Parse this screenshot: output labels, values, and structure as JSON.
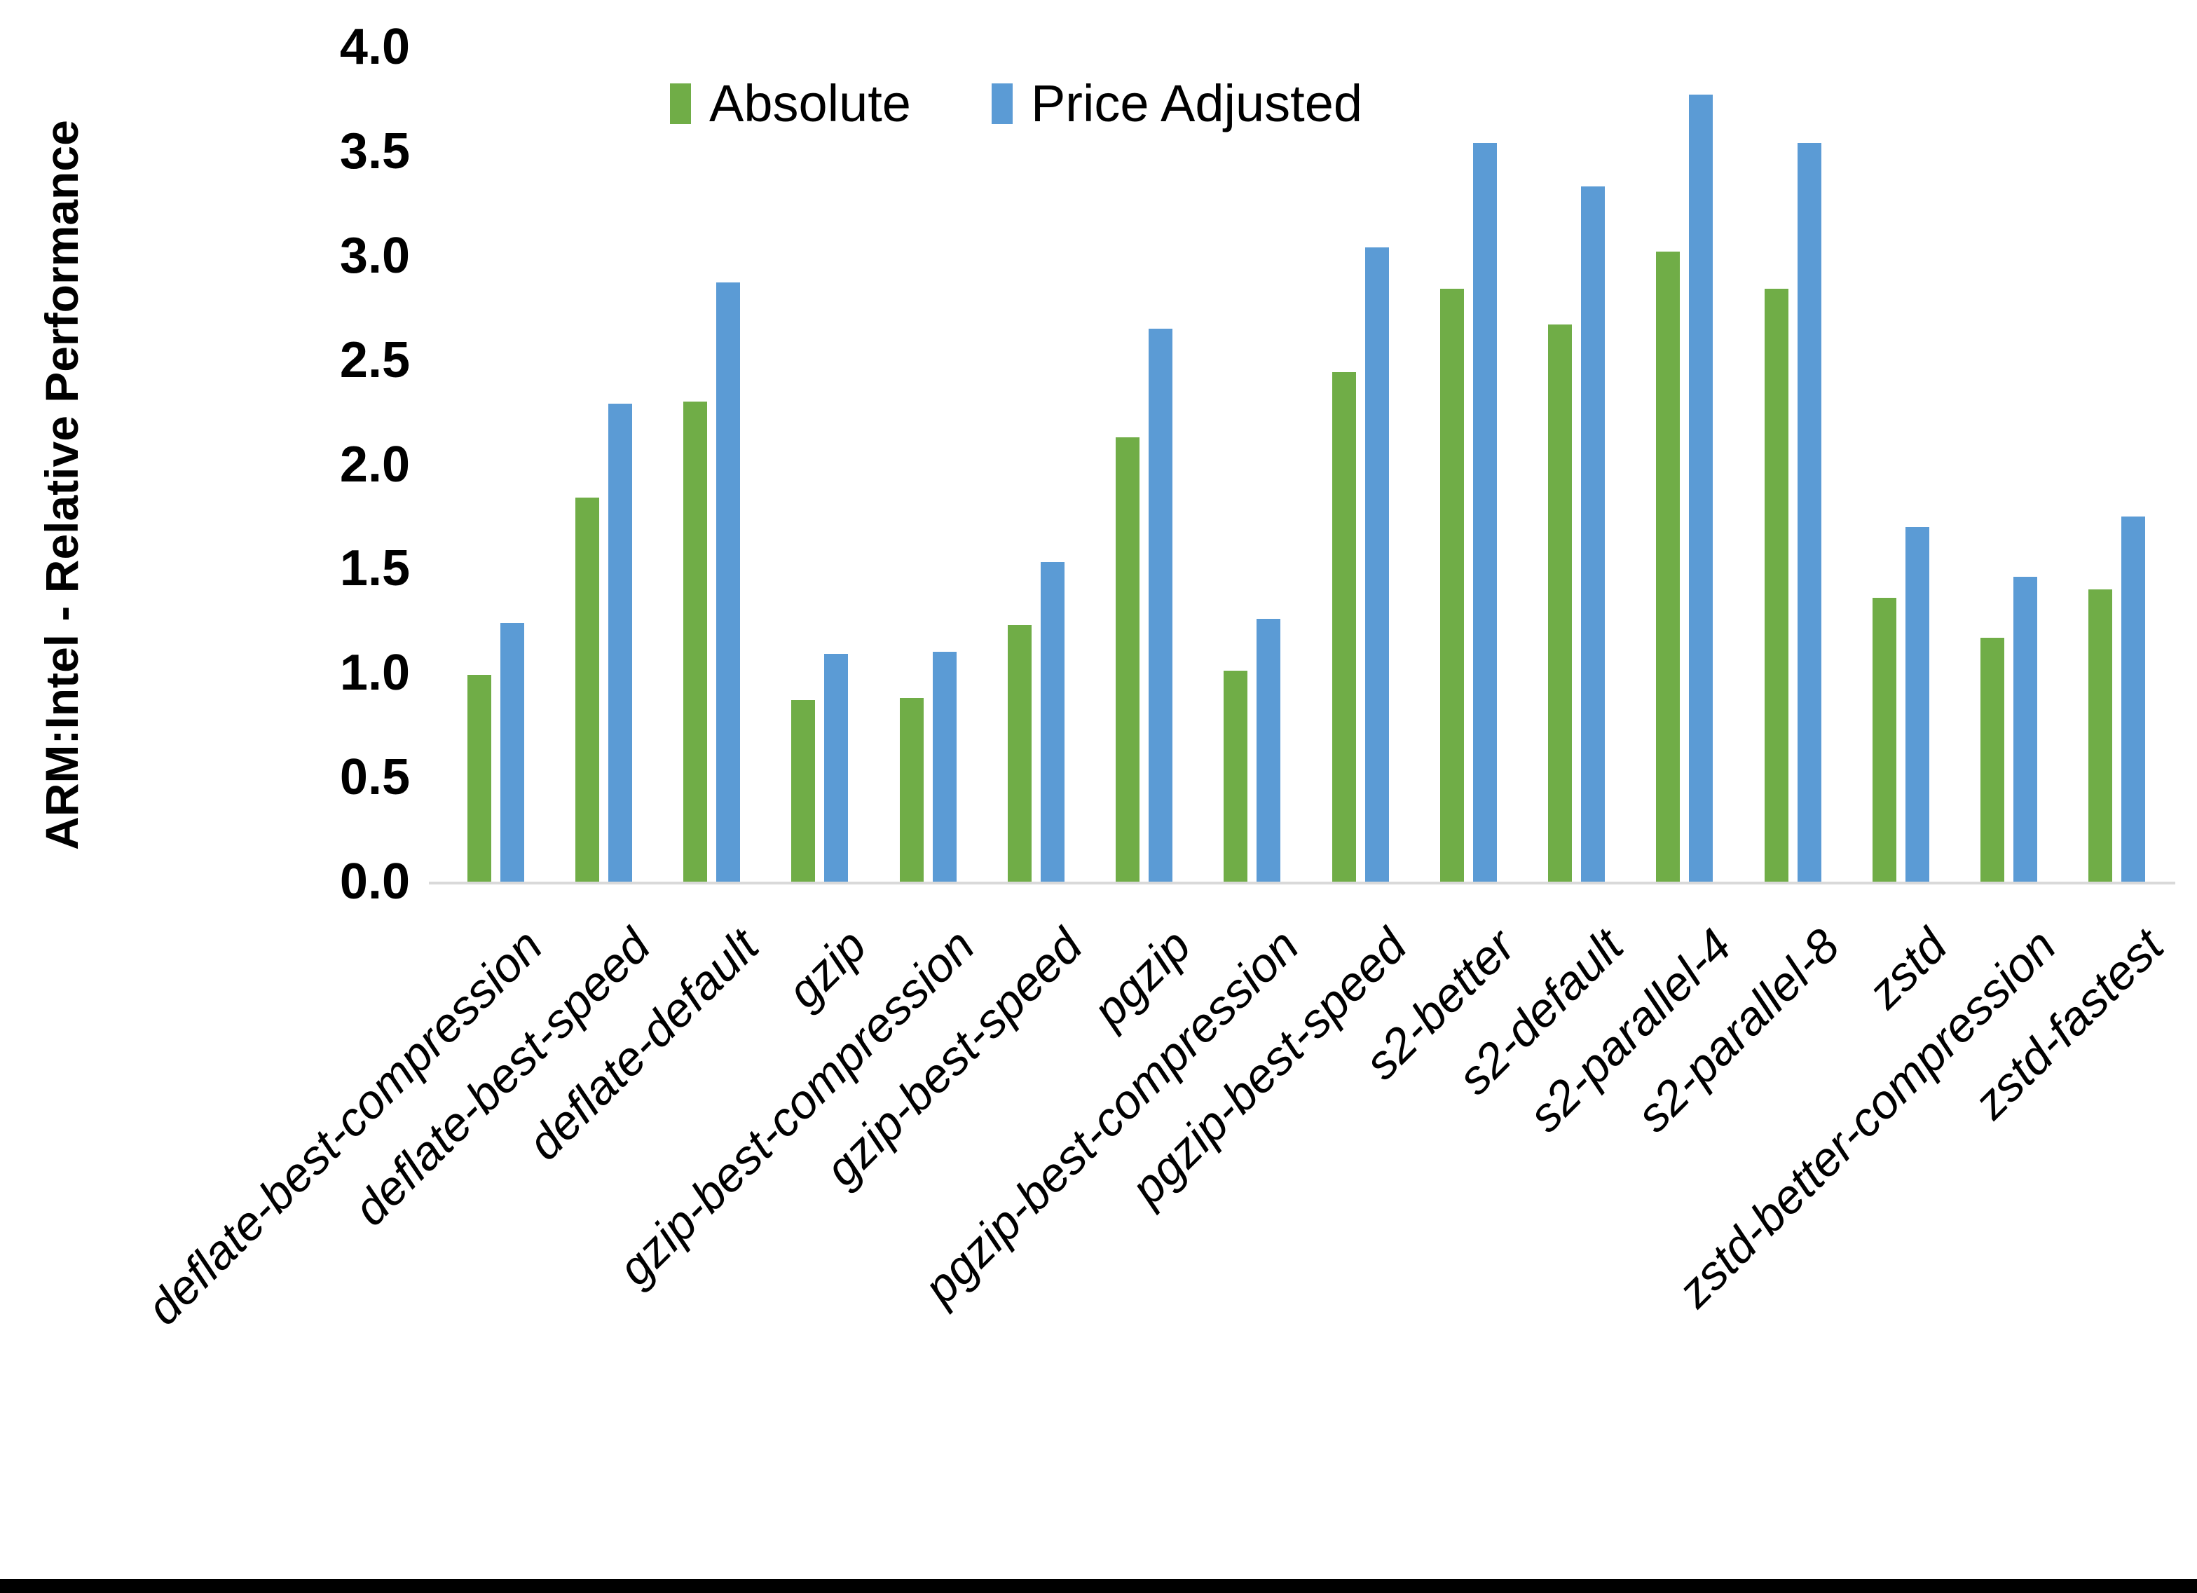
{
  "figure": {
    "background": "#ffffff",
    "bottom_border_color": "#000000",
    "axis_line_color": "#d9d9d9"
  },
  "chart_data": {
    "type": "bar",
    "title": "",
    "xlabel": "",
    "ylabel": "ARM:Intel - Relative Performance",
    "ylim": [
      0.0,
      4.0
    ],
    "ytick_labels": [
      "0.0",
      "0.5",
      "1.0",
      "1.5",
      "2.0",
      "2.5",
      "3.0",
      "3.5",
      "4.0"
    ],
    "grid": false,
    "legend_position": "top-center",
    "category_label_rotation_deg": 45,
    "categories": [
      "deflate-best-compression",
      "deflate-best-speed",
      "deflate-default",
      "gzip",
      "gzip-best-compression",
      "gzip-best-speed",
      "pgzip",
      "pgzip-best-compression",
      "pgzip-best-speed",
      "s2-better",
      "s2-default",
      "s2-parallel-4",
      "s2-parallel-8",
      "zstd",
      "zstd-better-compression",
      "zstd-fastest"
    ],
    "series": [
      {
        "name": "Absolute",
        "color": "#70AD47",
        "values": [
          0.99,
          1.84,
          2.3,
          0.87,
          0.88,
          1.23,
          2.13,
          1.01,
          2.44,
          2.84,
          2.67,
          3.02,
          2.84,
          1.36,
          1.17,
          1.4
        ]
      },
      {
        "name": "Price Adjusted",
        "color": "#5B9BD5",
        "values": [
          1.24,
          2.29,
          2.87,
          1.09,
          1.1,
          1.53,
          2.65,
          1.26,
          3.04,
          3.54,
          3.33,
          3.77,
          3.54,
          1.7,
          1.46,
          1.75
        ]
      }
    ]
  }
}
